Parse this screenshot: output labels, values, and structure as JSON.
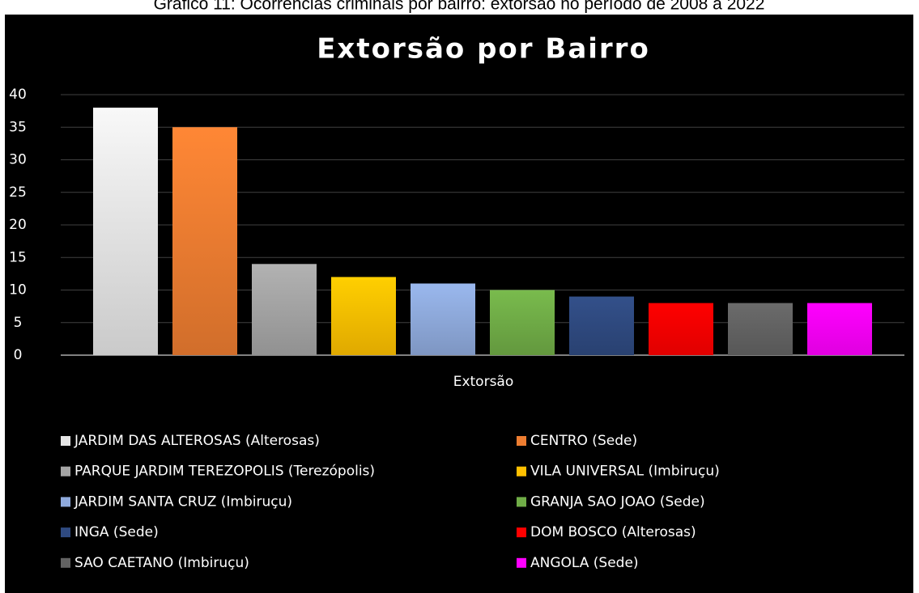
{
  "caption": "Gráfico 11: Ocorrências criminais por bairro: extorsão no período de 2008 a 2022",
  "chart_data": {
    "type": "bar",
    "title": "Extorsão por Bairro",
    "categories": [
      "Extorsão"
    ],
    "series": [
      {
        "name": "JARDIM DAS ALTEROSAS (Alterosas)",
        "color": "#e6e6e6",
        "values": [
          38
        ]
      },
      {
        "name": "CENTRO (Sede)",
        "color": "#ed7d31",
        "values": [
          35
        ]
      },
      {
        "name": "PARQUE JARDIM TEREZOPOLIS (Terezópolis)",
        "color": "#a5a5a5",
        "values": [
          14
        ]
      },
      {
        "name": "VILA UNIVERSAL (Imbiruçu)",
        "color": "#ffc000",
        "values": [
          12
        ]
      },
      {
        "name": "JARDIM SANTA CRUZ (Imbiruçu)",
        "color": "#8faadc",
        "values": [
          11
        ]
      },
      {
        "name": "GRANJA SAO JOAO (Sede)",
        "color": "#70ad47",
        "values": [
          10
        ]
      },
      {
        "name": "INGA (Sede)",
        "color": "#2f4a80",
        "values": [
          9
        ]
      },
      {
        "name": "DOM BOSCO (Alterosas)",
        "color": "#ff0000",
        "values": [
          8
        ]
      },
      {
        "name": "SAO CAETANO (Imbiruçu)",
        "color": "#636363",
        "values": [
          8
        ]
      },
      {
        "name": "ANGOLA (Sede)",
        "color": "#ff00ff",
        "values": [
          8
        ]
      }
    ],
    "ylim": [
      0,
      40
    ],
    "yticks": [
      0,
      5,
      10,
      15,
      20,
      25,
      30,
      35,
      40
    ],
    "grid": true,
    "legend": "bottom"
  }
}
